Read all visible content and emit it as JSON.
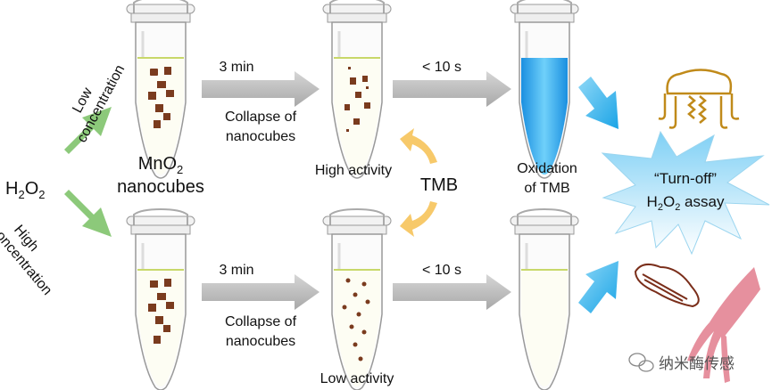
{
  "labels": {
    "h2o2": "H2O2",
    "low_concentration": [
      "Low",
      "concentration"
    ],
    "high_concentration": [
      "High",
      "concentration"
    ],
    "mno2": [
      "MnO2",
      "nanocubes"
    ],
    "time_3min": "3 min",
    "time_10s": "< 10 s",
    "collapse": [
      "Collapse of",
      "nanocubes"
    ],
    "high_activity": "High activity",
    "low_activity": "Low activity",
    "tmb": "TMB",
    "oxidation": [
      "Oxidation",
      "of TMB"
    ],
    "assay": [
      "“Turn-off”",
      "H2O2 assay"
    ],
    "watermark": "纳米酶传感"
  },
  "colors": {
    "green_arrow": "#8cc97a",
    "gray_arrow": "#b5b5b5",
    "yellow_arrow": "#f7c96a",
    "blue_arrow": "#3fb4ea",
    "oxidized_tmb": "#2a9ee6",
    "nanocube": "#7a3b1e",
    "jellyfish": "#c08a1a",
    "sea_cucumber": "#7a2e1a",
    "squid": "#e6909e"
  },
  "icons": [
    "jellyfish-icon",
    "sea-cucumber-icon",
    "squid-icon",
    "wechat-icon"
  ]
}
